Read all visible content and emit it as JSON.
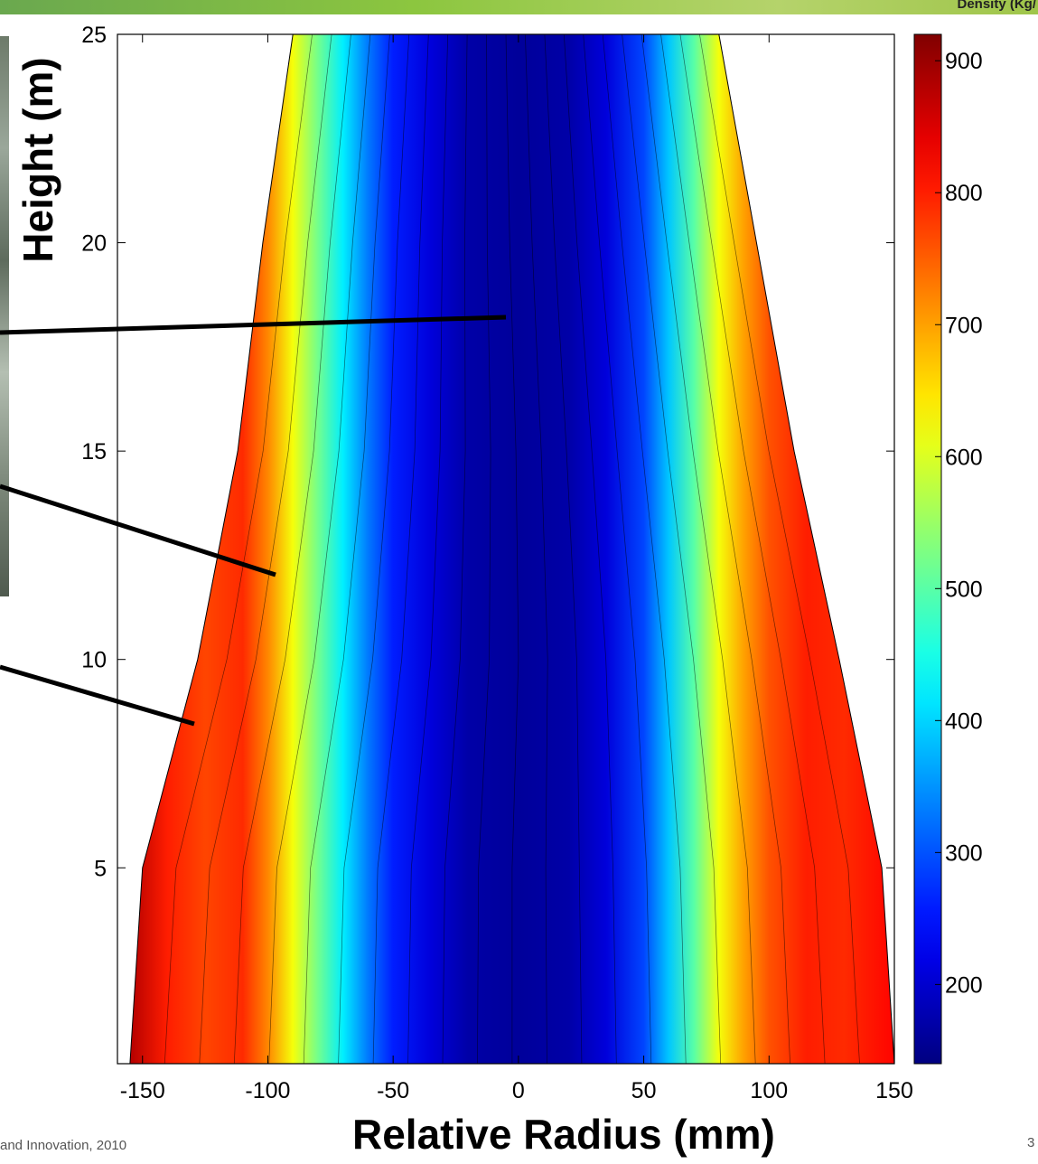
{
  "header": {
    "label": "Density (Kg/"
  },
  "footer": {
    "text": "and Innovation, 2010",
    "page_number": "3"
  },
  "chart_data": {
    "type": "heatmap",
    "title": "",
    "xlabel": "Relative Radius (mm)",
    "ylabel": "Height (m)",
    "xlim": [
      -160,
      150
    ],
    "ylim": [
      0.3,
      25
    ],
    "x_ticks": [
      -150,
      -100,
      -50,
      0,
      50,
      100,
      150
    ],
    "y_ticks": [
      5,
      10,
      15,
      20,
      25
    ],
    "colorbar": {
      "label": "Density (Kg/",
      "range": [
        140,
        920
      ],
      "ticks": [
        200,
        300,
        400,
        500,
        600,
        700,
        800,
        900
      ],
      "colormap": "jet"
    },
    "profile_x": [
      -155,
      -140,
      -125,
      -110,
      -100,
      -90,
      -80,
      -70,
      -60,
      -50,
      -35,
      -20,
      0,
      20,
      35,
      50,
      60,
      70,
      80,
      90,
      100,
      115,
      130,
      150
    ],
    "profile_density": [
      880,
      800,
      770,
      790,
      720,
      620,
      520,
      420,
      330,
      260,
      210,
      170,
      160,
      170,
      210,
      290,
      390,
      500,
      620,
      700,
      760,
      800,
      790,
      820
    ],
    "boundary_left": [
      [
        -155,
        0.3
      ],
      [
        -150,
        5
      ],
      [
        -128,
        10
      ],
      [
        -112,
        15
      ],
      [
        -102,
        20
      ],
      [
        -90,
        25
      ]
    ],
    "boundary_right": [
      [
        150,
        0.3
      ],
      [
        145,
        5
      ],
      [
        128,
        10
      ],
      [
        110,
        15
      ],
      [
        95,
        20
      ],
      [
        80,
        25
      ]
    ],
    "annotation_lines_count": 3
  }
}
